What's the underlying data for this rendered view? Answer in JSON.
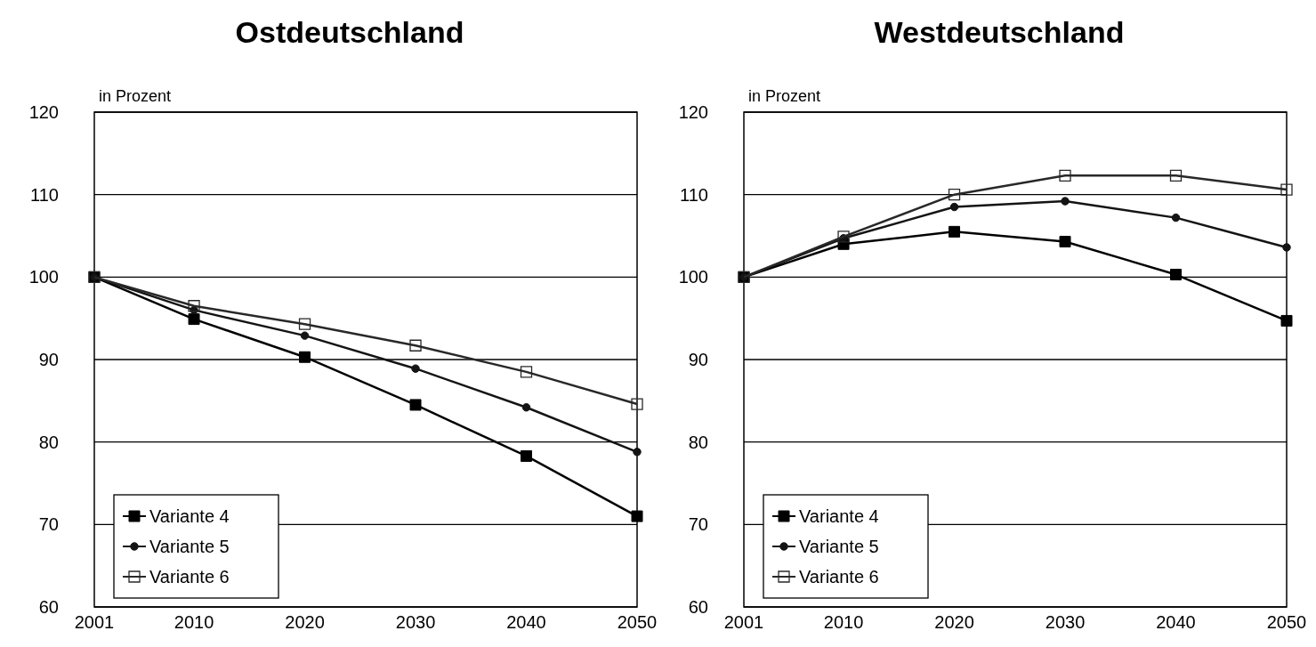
{
  "chart_data": [
    {
      "type": "line",
      "title": "Ostdeutschland",
      "ylabel": "in Prozent",
      "x": [
        2001,
        2010,
        2020,
        2030,
        2040,
        2050
      ],
      "xlim": [
        2001,
        2050
      ],
      "xticks": [
        2001,
        2010,
        2020,
        2030,
        2040,
        2050
      ],
      "ylim": [
        60,
        120
      ],
      "yticks": [
        60,
        70,
        80,
        90,
        100,
        110,
        120
      ],
      "grid": "y",
      "legend": "bottom left",
      "series": [
        {
          "name": "Variante 4",
          "color": "#000000",
          "marker": "square",
          "values": [
            100,
            94.9,
            90.3,
            84.5,
            78.3,
            71.0
          ]
        },
        {
          "name": "Variante 5",
          "color": "#141414",
          "marker": "circle",
          "values": [
            100,
            96.0,
            92.9,
            88.9,
            84.2,
            78.8
          ]
        },
        {
          "name": "Variante 6",
          "color": "#282828",
          "marker": "square",
          "values": [
            100,
            96.5,
            94.3,
            91.7,
            88.5,
            84.6
          ]
        }
      ]
    },
    {
      "type": "line",
      "title": "Westdeutschland",
      "ylabel": "in Prozent",
      "x": [
        2001,
        2010,
        2020,
        2030,
        2040,
        2050
      ],
      "xlim": [
        2001,
        2050
      ],
      "xticks": [
        2001,
        2010,
        2020,
        2030,
        2040,
        2050
      ],
      "ylim": [
        60,
        120
      ],
      "yticks": [
        60,
        70,
        80,
        90,
        100,
        110,
        120
      ],
      "grid": "y",
      "legend": "bottom left",
      "series": [
        {
          "name": "Variante 4",
          "color": "#000000",
          "marker": "square",
          "values": [
            100,
            104.0,
            105.5,
            104.3,
            100.3,
            94.7
          ]
        },
        {
          "name": "Variante 5",
          "color": "#141414",
          "marker": "circle",
          "values": [
            100,
            104.7,
            108.5,
            109.2,
            107.2,
            103.6
          ]
        },
        {
          "name": "Variante 6",
          "color": "#282828",
          "marker": "square",
          "values": [
            100,
            104.9,
            110.0,
            112.3,
            112.3,
            110.6
          ]
        }
      ]
    }
  ]
}
